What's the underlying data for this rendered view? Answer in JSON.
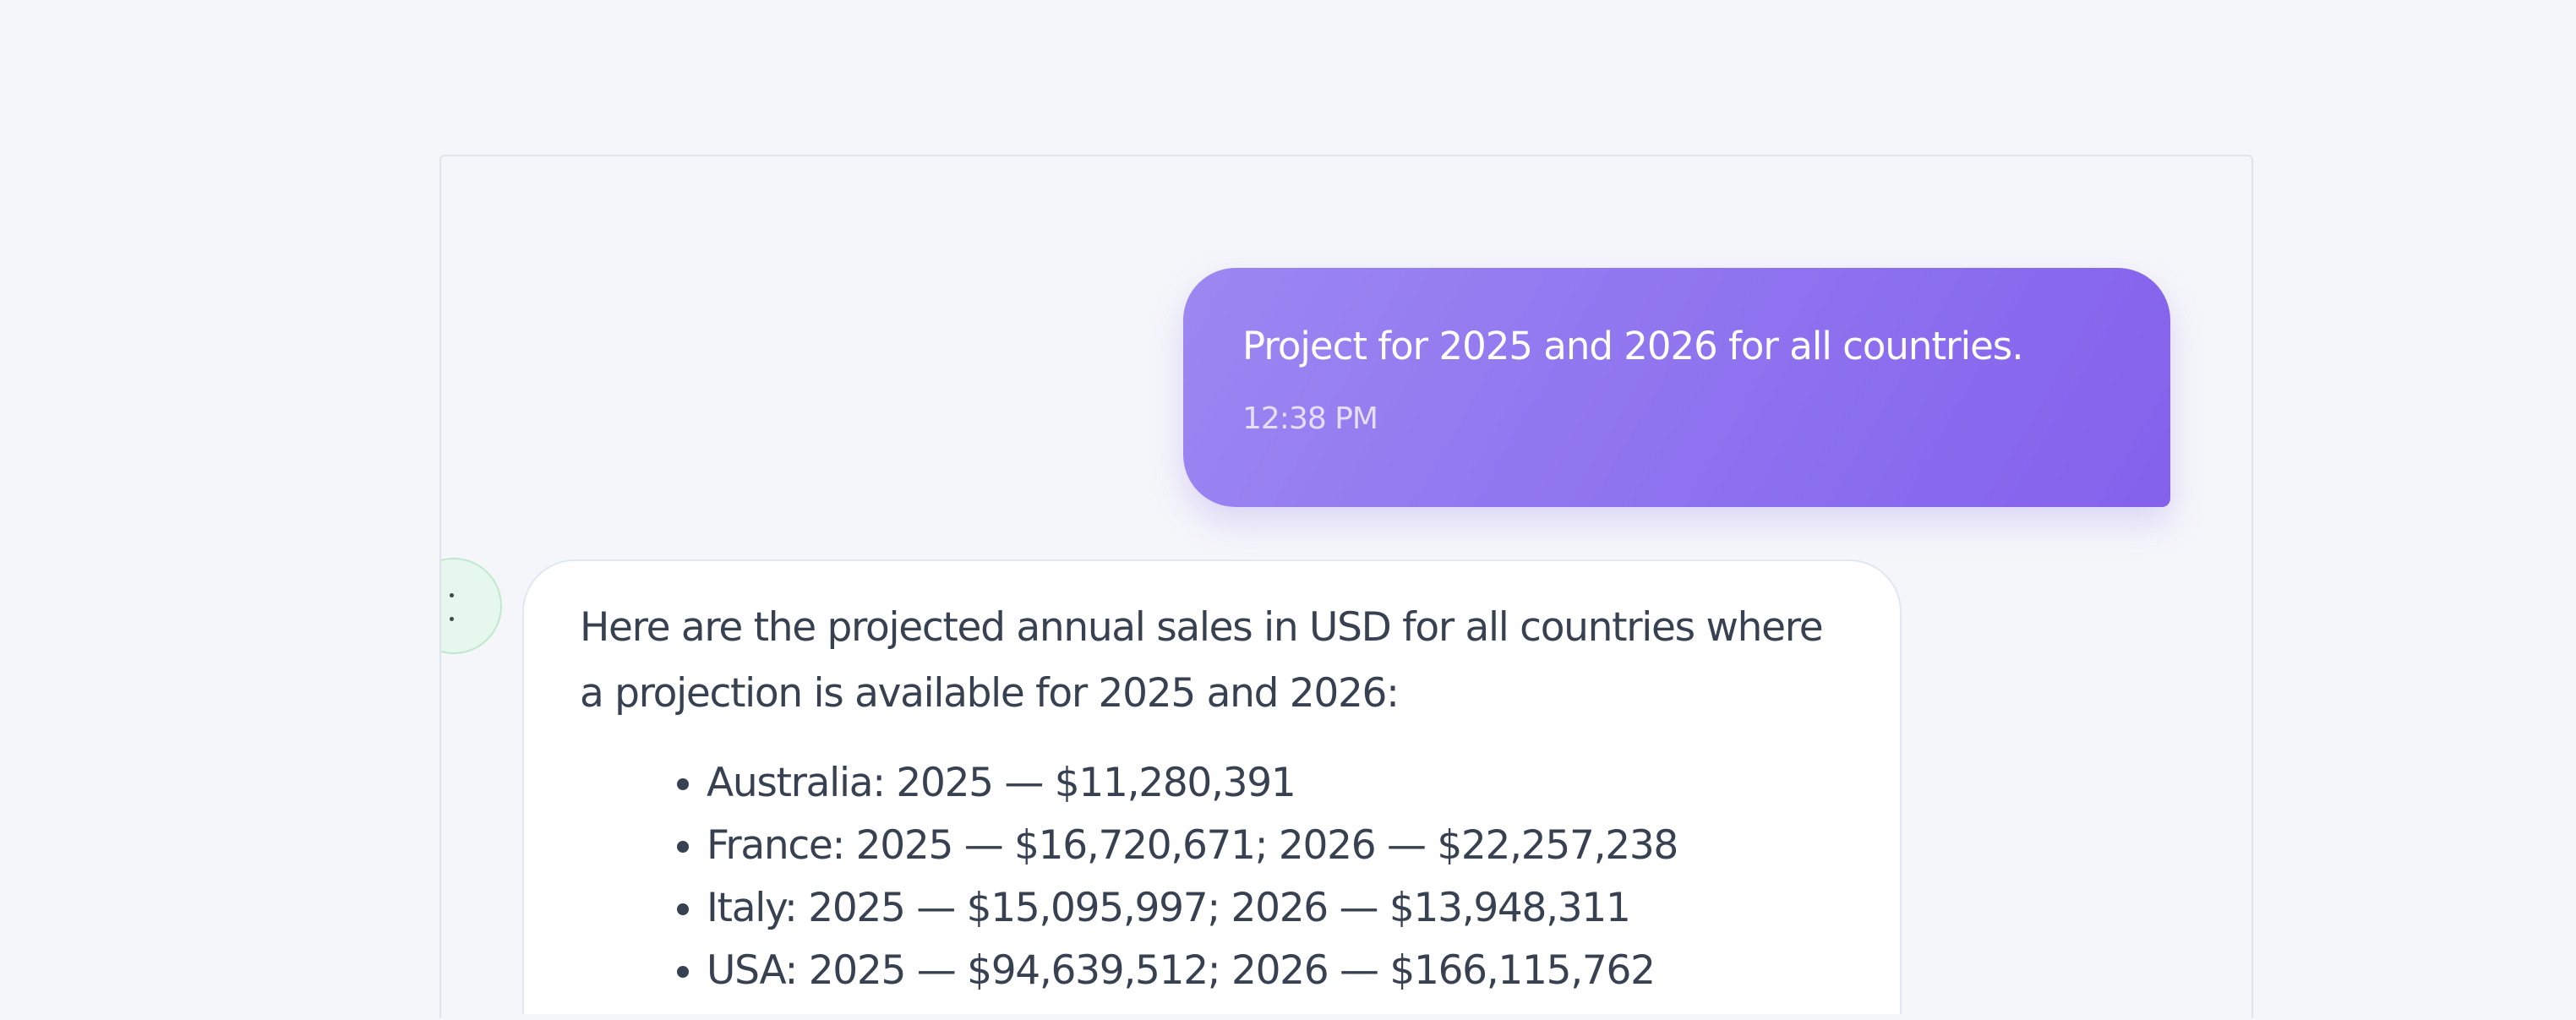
{
  "user_message": {
    "text": "Project for 2025 and 2026 for all countries.",
    "time": "12:38 PM"
  },
  "assistant_message": {
    "intro": "Here are the projected annual sales in USD for all countries where a projection is available for 2025 and 2026:",
    "items": [
      "Australia: 2025 — $11,280,391",
      "France: 2025 — $16,720,671; 2026 — $22,257,238",
      "Italy: 2025 — $15,095,997; 2026 — $13,948,311",
      "USA: 2025 — $94,639,512; 2026 — $166,115,762"
    ]
  },
  "colors": {
    "user_bubble_start": "#9c87f2",
    "user_bubble_end": "#8461ec",
    "avatar_bg": "#e6f7ee",
    "text": "#374151"
  }
}
